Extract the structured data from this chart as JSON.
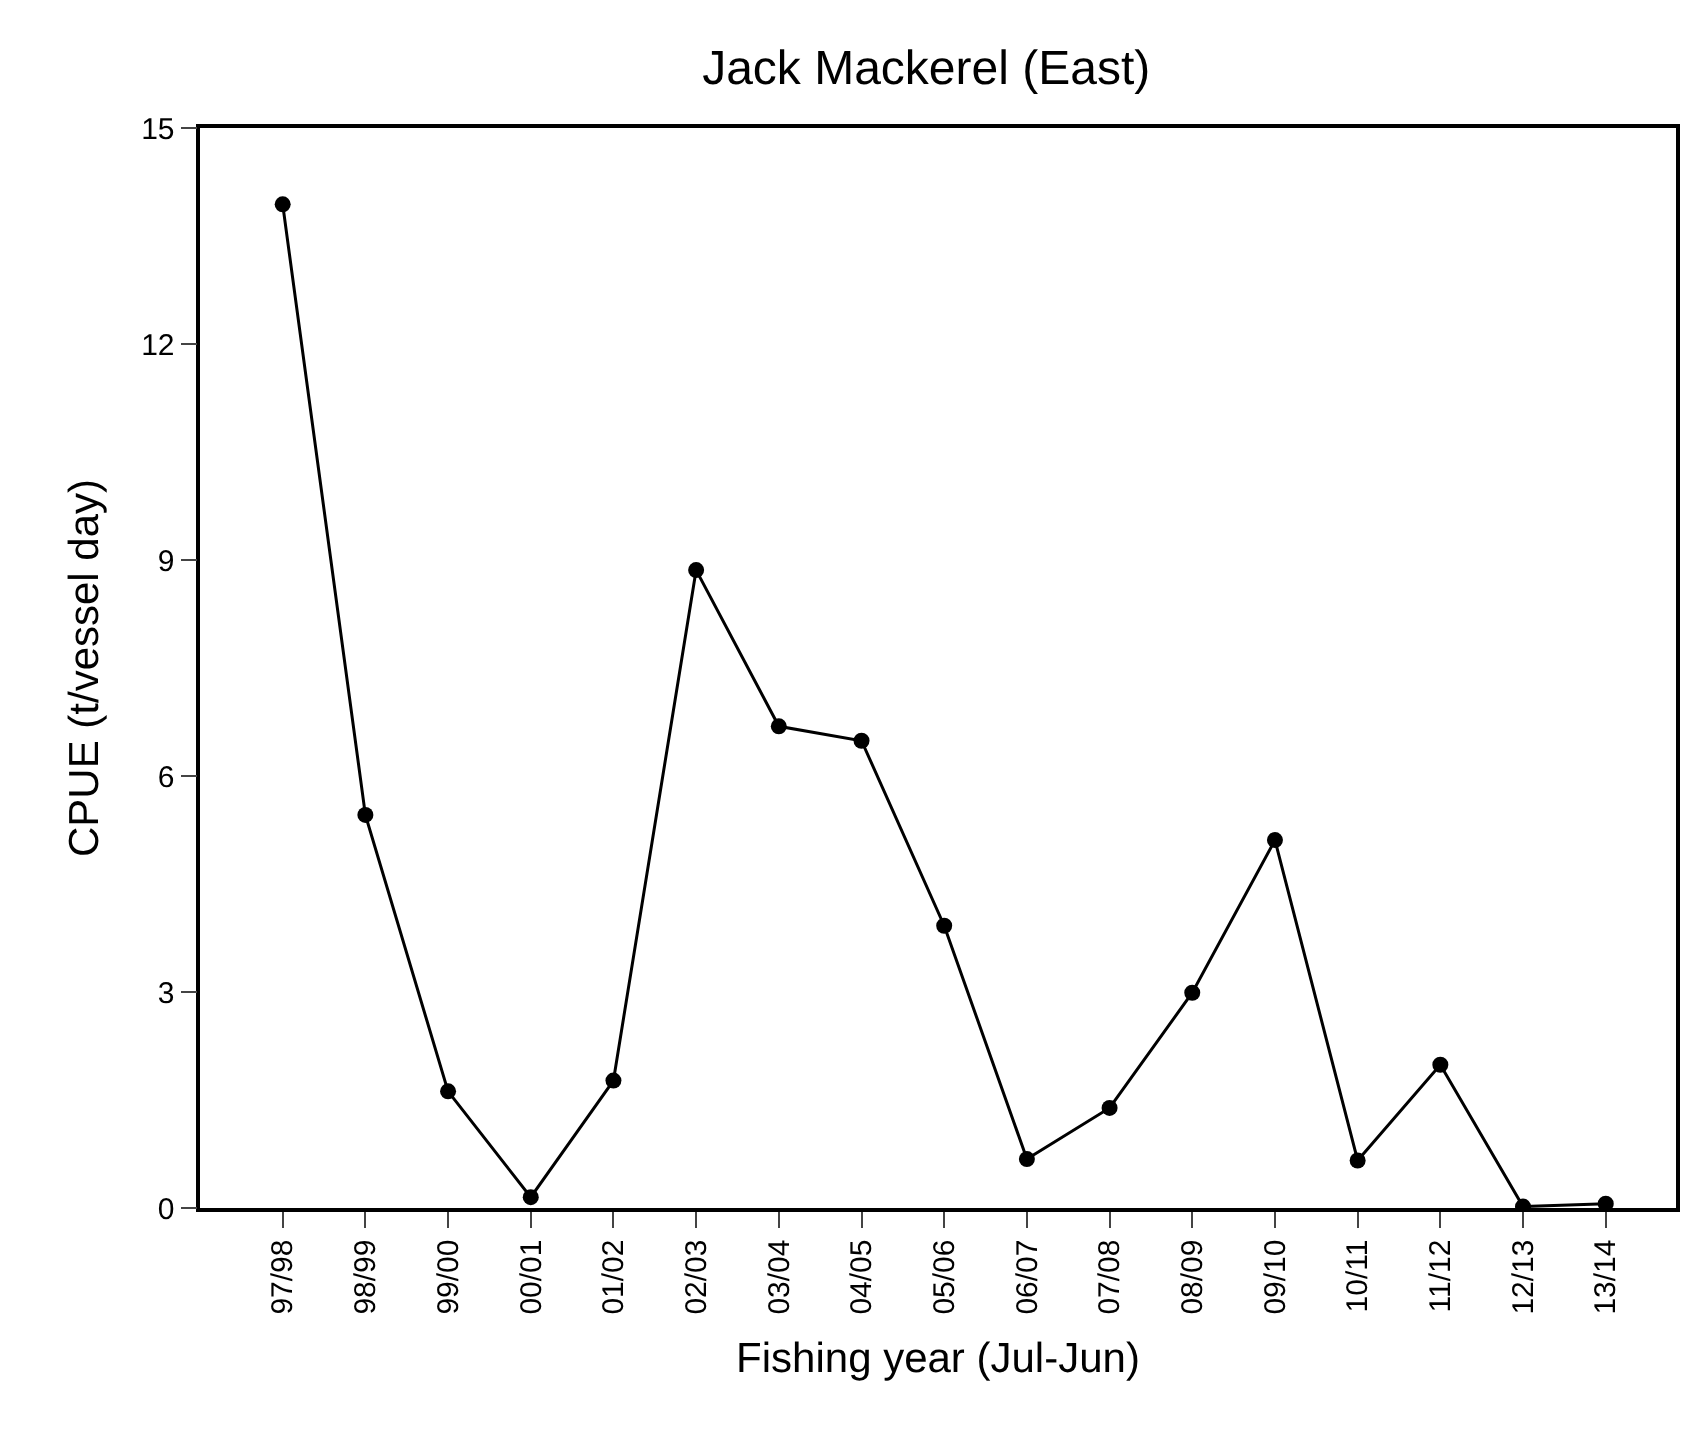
{
  "chart_data": {
    "type": "line",
    "title": "Jack Mackerel (East)",
    "xlabel": "Fishing year (Jul-Jun)",
    "ylabel": "CPUE (t/vessel day)",
    "categories": [
      "97/98",
      "98/99",
      "99/00",
      "00/01",
      "01/02",
      "02/03",
      "03/04",
      "04/05",
      "05/06",
      "06/07",
      "07/08",
      "08/09",
      "09/10",
      "10/11",
      "11/12",
      "12/13",
      "13/14"
    ],
    "series": [
      {
        "color": "#000000",
        "values": [
          13.94,
          5.46,
          1.62,
          0.15,
          1.77,
          8.86,
          6.69,
          6.49,
          3.92,
          0.68,
          1.39,
          2.99,
          5.11,
          0.66,
          1.99,
          0.02,
          0.06
        ]
      }
    ],
    "ylim": [
      0,
      15
    ],
    "yticks": [
      0,
      3,
      6,
      9,
      12,
      15
    ],
    "marker": "circle",
    "line_style": "solid"
  }
}
